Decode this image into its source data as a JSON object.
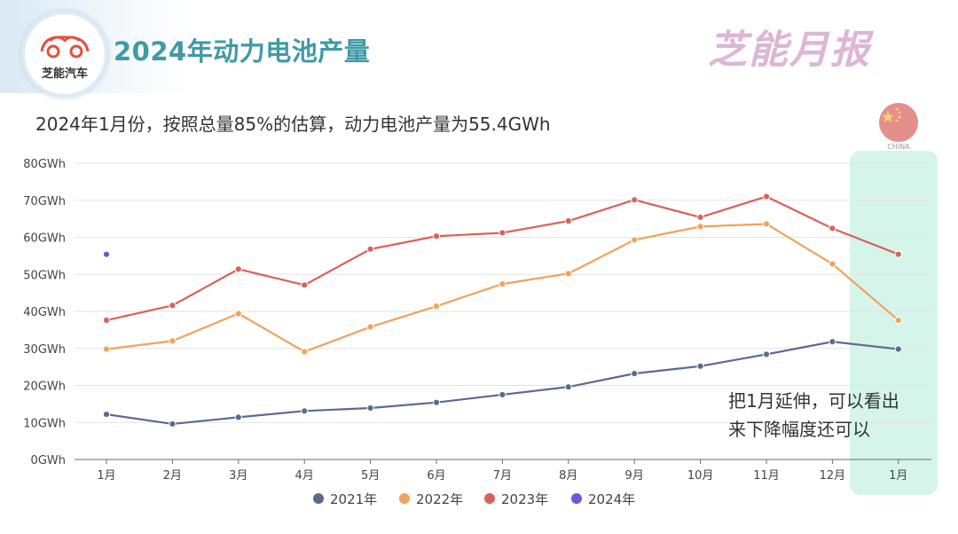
{
  "header": {
    "logo_text": "芝能汽车",
    "title": "2024年动力电池产量",
    "brand": "芝能月报"
  },
  "subtitle": "2024年1月份，按照总量85%的估算，动力电池产量为55.4GWh",
  "flag": {
    "label": "CHINA",
    "icon": "china-flag-icon"
  },
  "annotation": {
    "lines": [
      "把1月延伸，可以看出",
      "来下降幅度还可以"
    ]
  },
  "colors": {
    "s2021": "#5b6a8f",
    "s2022": "#f0a35c",
    "s2023": "#d8625c",
    "s2024": "#6a5bd8",
    "highlight": "#d6f5ea",
    "title": "#3f9aa5"
  },
  "chart_data": {
    "type": "line",
    "title": "2024年动力电池产量",
    "categories": [
      "1月",
      "2月",
      "3月",
      "4月",
      "5月",
      "6月",
      "7月",
      "8月",
      "9月",
      "10月",
      "11月",
      "12月",
      "1月"
    ],
    "y_ticks": [
      "0GWh",
      "10GWh",
      "20GWh",
      "30GWh",
      "40GWh",
      "50GWh",
      "60GWh",
      "70GWh",
      "80GWh"
    ],
    "ylim": [
      0,
      80
    ],
    "grid": true,
    "legend_position": "bottom",
    "series": [
      {
        "name": "2021年",
        "values": [
          12.2,
          9.6,
          11.4,
          13.1,
          13.9,
          15.4,
          17.5,
          19.6,
          23.2,
          25.2,
          28.4,
          31.8,
          29.8
        ]
      },
      {
        "name": "2022年",
        "values": [
          29.8,
          32.0,
          39.4,
          29.1,
          35.8,
          41.4,
          47.4,
          50.2,
          59.3,
          62.9,
          63.6,
          52.8,
          37.6
        ]
      },
      {
        "name": "2023年",
        "values": [
          37.6,
          41.6,
          51.4,
          47.1,
          56.8,
          60.3,
          61.2,
          64.4,
          70.1,
          65.4,
          71.0,
          62.4,
          55.4
        ]
      },
      {
        "name": "2024年",
        "values": [
          55.4,
          null,
          null,
          null,
          null,
          null,
          null,
          null,
          null,
          null,
          null,
          null,
          null
        ]
      }
    ]
  }
}
